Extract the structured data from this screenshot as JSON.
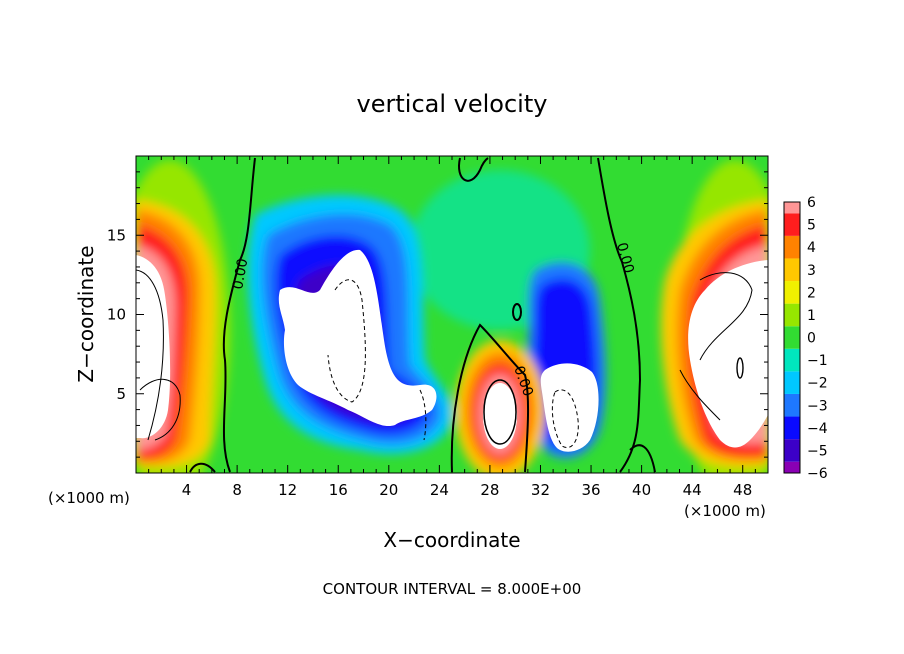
{
  "chart_data": {
    "type": "heatmap",
    "title": "vertical velocity",
    "xlabel": "X−coordinate",
    "ylabel": "Z−coordinate",
    "x_unit_left": "(×1000 m)",
    "x_unit_right": "(×1000 m)",
    "footer": "CONTOUR INTERVAL = 8.000E+00",
    "xlim": [
      0,
      50
    ],
    "ylim": [
      0,
      20
    ],
    "x_ticks": [
      4,
      8,
      12,
      16,
      20,
      24,
      28,
      32,
      36,
      40,
      44,
      48
    ],
    "x_tick_labels": [
      "4",
      "8",
      "12",
      "16",
      "20",
      "24",
      "28",
      "32",
      "36",
      "40",
      "44",
      "48"
    ],
    "y_ticks": [
      5,
      10,
      15
    ],
    "y_tick_labels": [
      "5",
      "10",
      "15"
    ],
    "colorbar": {
      "levels": [
        -6,
        -5,
        -4,
        -3,
        -2,
        -1,
        0,
        1,
        2,
        3,
        4,
        5,
        6
      ],
      "labels": [
        "−6",
        "−5",
        "−4",
        "−3",
        "−2",
        "−1",
        "0",
        "1",
        "2",
        "3",
        "4",
        "5",
        "6"
      ],
      "colors": [
        "#8a00b4",
        "#3c00c8",
        "#0a0aff",
        "#1e78ff",
        "#00c8ff",
        "#00e6be",
        "#32dc32",
        "#96e600",
        "#f0f000",
        "#ffc800",
        "#ff8200",
        "#ff1e1e",
        "#ff9696"
      ]
    },
    "contour_labels": [
      "0.00",
      "0.00",
      "0.00"
    ],
    "features": [
      {
        "kind": "updraft",
        "x_center": 3,
        "z_center": 8,
        "peak": 8
      },
      {
        "kind": "downdraft",
        "x_center": 15.5,
        "z_center": 8.5,
        "peak": -12
      },
      {
        "kind": "downdraft",
        "x_center": 21,
        "z_center": 4.5,
        "peak": -8
      },
      {
        "kind": "updraft",
        "x_center": 28.5,
        "z_center": 3.5,
        "peak": 10
      },
      {
        "kind": "downdraft",
        "x_center": 34,
        "z_center": 5,
        "peak": -10
      },
      {
        "kind": "updraft",
        "x_center": 46.5,
        "z_center": 9,
        "peak": 12
      }
    ]
  }
}
